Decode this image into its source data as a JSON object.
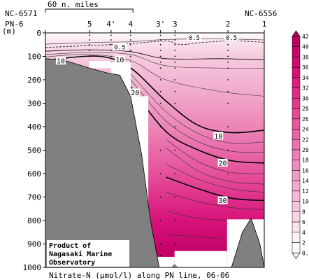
{
  "chart_data": {
    "type": "contour",
    "caption": "Nitrate-N (μmol/l) along PN line, 06-06",
    "credit": [
      "Product of",
      "Nagasaki Marine",
      "Observatory"
    ],
    "scale_bar_label": "60 n. miles",
    "left_station_code": "NC-6571",
    "right_station_code": "NC-6556",
    "y_axis": {
      "label": "(m)",
      "ticks": [
        0,
        100,
        200,
        300,
        400,
        500,
        600,
        700,
        800,
        900,
        1000
      ],
      "ylim": [
        0,
        1000
      ],
      "inverted": true
    },
    "stations": [
      {
        "label": "PN-6",
        "pos": 0.0,
        "sample_depths": [
          10,
          30,
          50,
          75,
          100
        ]
      },
      {
        "label": "5",
        "pos": 0.202,
        "sample_depths": [
          10,
          30,
          50,
          75,
          100
        ]
      },
      {
        "label": "4'",
        "pos": 0.3,
        "sample_depths": [
          10,
          30,
          50,
          75,
          100,
          125
        ]
      },
      {
        "label": "4",
        "pos": 0.389,
        "sample_depths": [
          10,
          30,
          50,
          75,
          100,
          125,
          150,
          200,
          250
        ]
      },
      {
        "label": "3'",
        "pos": 0.526,
        "sample_depths": [
          10,
          30,
          50,
          75,
          100,
          125,
          150,
          200,
          250,
          300,
          400,
          500,
          600,
          700,
          800,
          900,
          950
        ]
      },
      {
        "label": "3",
        "pos": 0.592,
        "sample_depths": [
          10,
          30,
          50,
          75,
          100,
          125,
          150,
          200,
          250,
          300,
          400,
          500,
          600,
          700,
          800,
          900,
          950
        ]
      },
      {
        "label": "2",
        "pos": 0.834,
        "sample_depths": [
          10,
          30,
          50,
          75,
          100,
          125,
          150,
          200,
          250,
          300,
          400,
          500,
          600,
          700,
          800,
          900
        ]
      },
      {
        "label": "1",
        "pos": 1.0,
        "sample_depths": [
          10,
          30,
          50,
          75,
          100,
          125,
          150,
          200,
          250,
          300,
          400,
          500,
          600,
          700,
          800
        ]
      }
    ],
    "colorbar": {
      "labels": [
        "42",
        "40",
        "38",
        "36",
        "34",
        "32",
        "30",
        "28",
        "26",
        "24",
        "22",
        "20",
        "18",
        "16",
        "14",
        "12",
        "10",
        "8",
        "6",
        "4",
        "2",
        "0.5"
      ],
      "colors": [
        "#ffffff",
        "#fdf0f6",
        "#fbe2ee",
        "#f9d4e6",
        "#f7c6de",
        "#f5b8d6",
        "#f3aace",
        "#f19cc6",
        "#ef8ebe",
        "#ed80b6",
        "#eb72ae",
        "#e964a6",
        "#e7569e",
        "#e54896",
        "#e33a8e",
        "#e12c86",
        "#df1e7e",
        "#dd1076",
        "#d4086e",
        "#c80466",
        "#b8005c"
      ]
    },
    "contour_labels": [
      {
        "text": "0.5",
        "pos": 0.68,
        "depth": 20
      },
      {
        "text": "0.5",
        "pos": 0.85,
        "depth": 20
      },
      {
        "text": "0.5",
        "pos": 0.34,
        "depth": 60
      },
      {
        "text": "10",
        "pos": 0.07,
        "depth": 120
      },
      {
        "text": "10",
        "pos": 0.34,
        "depth": 115
      },
      {
        "text": "20",
        "pos": 0.41,
        "depth": 255
      },
      {
        "text": "10",
        "pos": 0.79,
        "depth": 440
      },
      {
        "text": "20",
        "pos": 0.81,
        "depth": 555
      },
      {
        "text": "30",
        "pos": 0.81,
        "depth": 715
      }
    ],
    "isolines": {
      "0.5": [
        [
          0.0,
          62
        ],
        [
          0.25,
          52
        ],
        [
          0.4,
          45
        ],
        [
          0.55,
          35
        ],
        [
          0.62,
          50
        ],
        [
          0.7,
          42
        ],
        [
          0.85,
          34
        ],
        [
          1.0,
          40
        ]
      ],
      "2": [
        [
          0.0,
          78
        ],
        [
          0.2,
          72
        ],
        [
          0.39,
          80
        ],
        [
          0.55,
          110
        ],
        [
          0.8,
          110
        ],
        [
          1.0,
          115
        ]
      ],
      "10": [
        [
          0.04,
          112
        ],
        [
          0.25,
          100
        ],
        [
          0.39,
          150
        ],
        [
          0.55,
          290
        ],
        [
          0.7,
          395
        ],
        [
          0.85,
          425
        ],
        [
          1.0,
          415
        ]
      ],
      "20": [
        [
          0.39,
          230
        ],
        [
          0.55,
          420
        ],
        [
          0.7,
          500
        ],
        [
          0.85,
          545
        ],
        [
          1.0,
          555
        ]
      ],
      "30": [
        [
          0.55,
          615
        ],
        [
          0.7,
          665
        ],
        [
          0.85,
          705
        ],
        [
          1.0,
          715
        ]
      ]
    },
    "thin_isoline_depths": [
      [
        [
          0.0,
          48
        ],
        [
          0.25,
          40
        ],
        [
          0.39,
          38
        ],
        [
          0.55,
          28
        ],
        [
          0.8,
          26
        ],
        [
          1.0,
          30
        ]
      ],
      [
        [
          0.0,
          92
        ],
        [
          0.2,
          84
        ],
        [
          0.39,
          92
        ],
        [
          0.55,
          140
        ],
        [
          0.8,
          150
        ],
        [
          1.0,
          150
        ]
      ],
      [
        [
          0.0,
          102
        ],
        [
          0.2,
          92
        ],
        [
          0.39,
          118
        ],
        [
          0.55,
          200
        ],
        [
          0.8,
          250
        ],
        [
          1.0,
          270
        ]
      ],
      [
        [
          0.39,
          175
        ],
        [
          0.55,
          335
        ],
        [
          0.7,
          430
        ],
        [
          0.85,
          470
        ],
        [
          1.0,
          465
        ]
      ],
      [
        [
          0.39,
          200
        ],
        [
          0.55,
          375
        ],
        [
          0.7,
          465
        ],
        [
          0.85,
          505
        ],
        [
          1.0,
          508
        ]
      ],
      [
        [
          0.55,
          455
        ],
        [
          0.7,
          550
        ],
        [
          0.85,
          595
        ],
        [
          1.0,
          600
        ]
      ],
      [
        [
          0.55,
          490
        ],
        [
          0.7,
          590
        ],
        [
          0.85,
          635
        ],
        [
          1.0,
          645
        ]
      ],
      [
        [
          0.55,
          560
        ],
        [
          0.7,
          625
        ],
        [
          0.85,
          665
        ],
        [
          1.0,
          680
        ]
      ],
      [
        [
          0.55,
          680
        ],
        [
          0.7,
          720
        ],
        [
          0.85,
          745
        ],
        [
          1.0,
          755
        ]
      ],
      [
        [
          0.55,
          760
        ],
        [
          0.7,
          790
        ],
        [
          0.85,
          800
        ],
        [
          1.0,
          800
        ]
      ],
      [
        [
          0.55,
          860
        ],
        [
          0.7,
          870
        ],
        [
          0.8,
          875
        ]
      ]
    ],
    "depth_color_stops": [
      [
        0,
        "#ffffff"
      ],
      [
        30,
        "#fbe8f1"
      ],
      [
        90,
        "#f6cde0"
      ],
      [
        200,
        "#f2b6d2"
      ],
      [
        400,
        "#ec86b8"
      ],
      [
        600,
        "#e5509a"
      ],
      [
        800,
        "#d8127a"
      ],
      [
        950,
        "#bf0064"
      ]
    ],
    "topography": {
      "left_block": [
        [
          0.0,
          110
        ],
        [
          0.08,
          115
        ],
        [
          0.15,
          135
        ],
        [
          0.2,
          150
        ],
        [
          0.28,
          170
        ],
        [
          0.34,
          180
        ],
        [
          0.389,
          270
        ],
        [
          0.44,
          520
        ],
        [
          0.48,
          800
        ],
        [
          0.51,
          950
        ],
        [
          0.52,
          1000
        ]
      ],
      "white_gaps": [
        {
          "from": 0.2,
          "to": 0.3,
          "top": 120,
          "bottom": 150
        },
        {
          "from": 0.3,
          "to": 0.39,
          "top": 125,
          "bottom": 270
        },
        {
          "from": 0.39,
          "to": 0.47,
          "top": 270,
          "bottom": 1000
        },
        {
          "from": 0.47,
          "to": 0.59,
          "top": 955,
          "bottom": 1000
        },
        {
          "from": 0.59,
          "to": 0.83,
          "top": 930,
          "bottom": 1000
        },
        {
          "from": 0.83,
          "to": 1.0,
          "top": 795,
          "bottom": 1000
        }
      ],
      "right_seamount": [
        [
          0.85,
          1000
        ],
        [
          0.9,
          850
        ],
        [
          0.94,
          790
        ],
        [
          0.98,
          900
        ],
        [
          1.0,
          1000
        ]
      ],
      "nub": [
        [
          0.575,
          1000
        ],
        [
          0.59,
          985
        ],
        [
          0.605,
          1000
        ]
      ]
    }
  }
}
